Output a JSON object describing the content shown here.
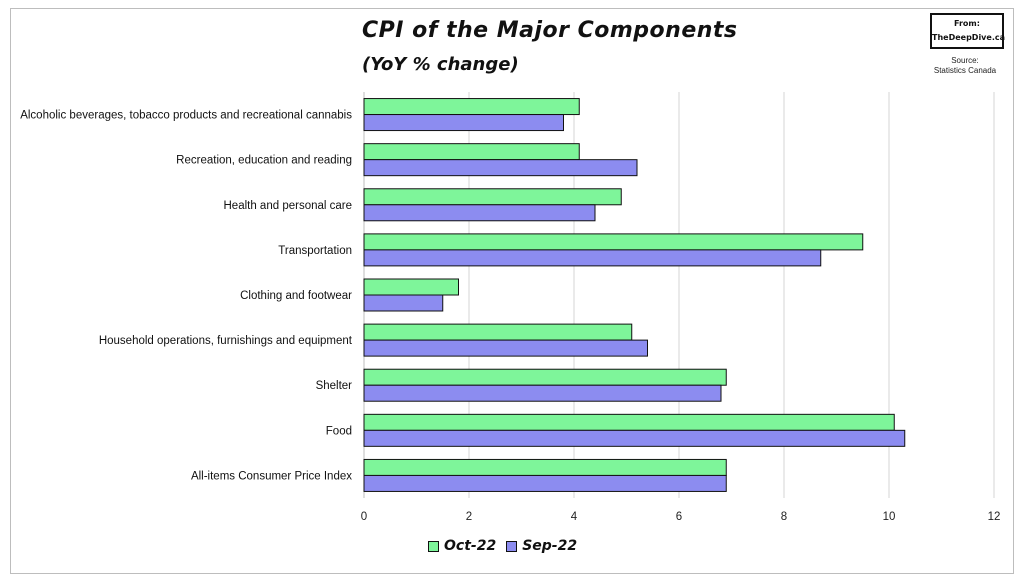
{
  "title": "CPI of the Major Components",
  "subtitle": "(YoY % change)",
  "badge": {
    "line1": "From:",
    "line2": "TheDeepDive.ca"
  },
  "source": {
    "line1": "Source:",
    "line2": "Statistics Canada"
  },
  "colors": {
    "oct": "#7ef59a",
    "sep": "#8c8cf0",
    "grid": "#d4d4d4",
    "outline": "#111111"
  },
  "chart_data": {
    "type": "bar",
    "orientation": "horizontal",
    "categories": [
      "Alcoholic beverages, tobacco products and recreational cannabis",
      "Recreation, education and reading",
      "Health and personal care",
      "Transportation",
      "Clothing and footwear",
      "Household operations, furnishings and equipment",
      "Shelter",
      "Food",
      "All-items Consumer Price Index"
    ],
    "series": [
      {
        "name": "Oct-22",
        "values": [
          4.1,
          4.1,
          4.9,
          9.5,
          1.8,
          5.1,
          6.9,
          10.1,
          6.9
        ]
      },
      {
        "name": "Sep-22",
        "values": [
          3.8,
          5.2,
          4.4,
          8.7,
          1.5,
          5.4,
          6.8,
          10.3,
          6.9
        ]
      }
    ],
    "xlim": [
      0,
      12
    ],
    "xticks": [
      "0",
      "2",
      "4",
      "6",
      "8",
      "10",
      "12"
    ],
    "grid": "vertical",
    "legend": "bottom"
  }
}
